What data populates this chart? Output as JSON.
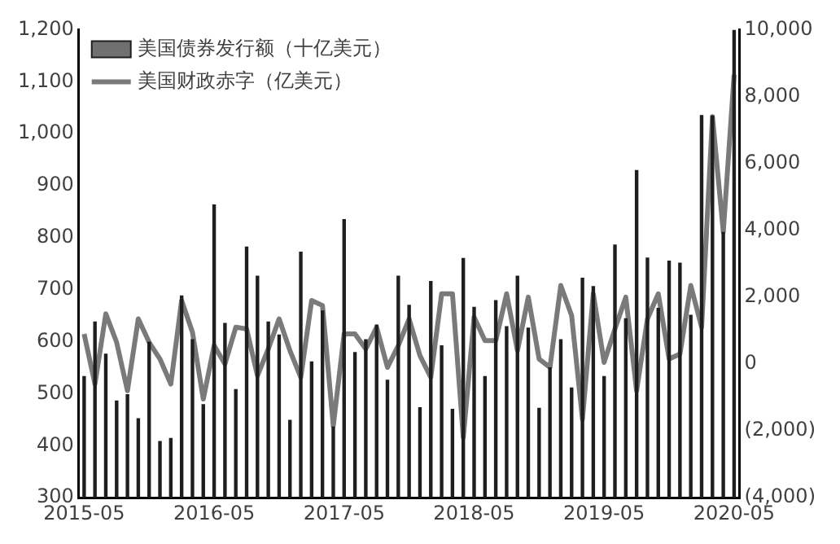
{
  "chart_data": {
    "type": "bar",
    "categories": [
      "2015-05",
      null,
      null,
      null,
      null,
      null,
      null,
      null,
      null,
      null,
      null,
      null,
      "2016-05",
      null,
      null,
      null,
      null,
      null,
      null,
      null,
      null,
      null,
      null,
      null,
      "2017-05",
      null,
      null,
      null,
      null,
      null,
      null,
      null,
      null,
      null,
      null,
      null,
      "2018-05",
      null,
      null,
      null,
      null,
      null,
      null,
      null,
      null,
      null,
      null,
      null,
      "2019-05",
      null,
      null,
      null,
      null,
      null,
      null,
      null,
      null,
      null,
      null,
      null,
      "2020-05"
    ],
    "series": [
      {
        "name": "美国债券发行额（十亿美元）",
        "color": "#1e1e1e",
        "values": [
          534,
          639,
          577,
          487,
          499,
          453,
          600,
          409,
          415,
          689,
          605,
          480,
          864,
          636,
          509,
          783,
          727,
          639,
          614,
          450,
          773,
          562,
          660,
          437,
          836,
          580,
          605,
          633,
          527,
          727,
          671,
          474,
          717,
          593,
          471,
          761,
          667,
          534,
          680,
          630,
          727,
          627,
          473,
          551,
          605,
          512,
          723,
          707,
          534,
          787,
          645,
          930,
          762,
          665,
          756,
          752,
          652,
          1036,
          1035,
          811,
          1200
        ]
      },
      {
        "name": "美国财政赤字（亿美元）",
        "type": "line",
        "axis": "y2",
        "color": "#7a7a7a",
        "values": [
          900,
          -600,
          1500,
          650,
          -800,
          1350,
          650,
          150,
          -600,
          1900,
          950,
          -1050,
          550,
          0,
          1100,
          1050,
          -350,
          450,
          1350,
          400,
          -400,
          1900,
          1750,
          -1850,
          900,
          900,
          450,
          1100,
          -100,
          550,
          1350,
          250,
          -400,
          2100,
          2100,
          -2200,
          1400,
          700,
          700,
          2100,
          400,
          2000,
          150,
          -100,
          2350,
          1450,
          -1650,
          2100,
          50,
          1050,
          2000,
          -800,
          1350,
          2100,
          150,
          300,
          2350,
          1100,
          7400,
          3950,
          8650
        ]
      }
    ],
    "ylim": [
      300,
      1200
    ],
    "yticks": [
      300,
      400,
      500,
      600,
      700,
      800,
      900,
      {
        "value": 1000,
        "label": "1,000"
      },
      {
        "value": 1100,
        "label": "1,100"
      },
      {
        "value": 1200,
        "label": "1,200"
      }
    ],
    "y2lim": [
      -4000,
      10000
    ],
    "y2ticks": [
      {
        "value": -4000,
        "label": "(4,000)"
      },
      {
        "value": -2000,
        "label": "(2,000)"
      },
      0,
      {
        "value": 2000,
        "label": "2,000"
      },
      {
        "value": 4000,
        "label": "4,000"
      },
      {
        "value": 6000,
        "label": "6,000"
      },
      {
        "value": 8000,
        "label": "8,000"
      },
      {
        "value": 10000,
        "label": "10,000"
      }
    ],
    "grid": false,
    "legend": "top left"
  }
}
